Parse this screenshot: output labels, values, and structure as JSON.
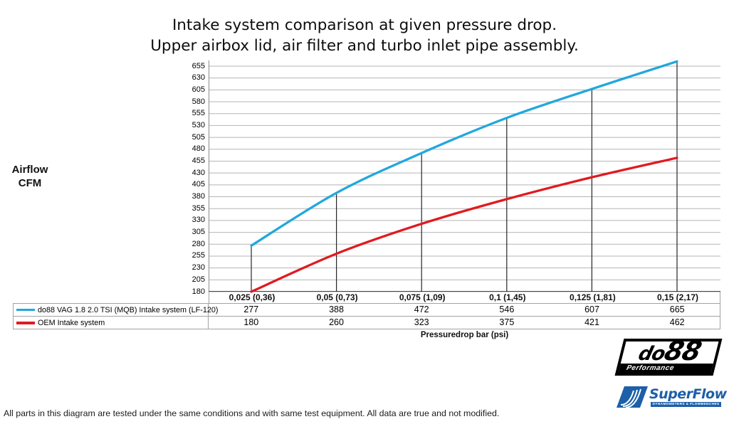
{
  "title": {
    "line1": "Intake system comparison at given pressure drop.",
    "line2": "Upper airbox lid, air filter and turbo inlet pipe assembly."
  },
  "y_axis": {
    "label_line1": "Airflow",
    "label_line2": "CFM"
  },
  "footer": "All parts in this diagram are tested under the same conditions and with same test equipment. All data are true and not modified.",
  "logos": {
    "do88": {
      "name": "do88",
      "tagline": "Performance"
    },
    "superflow": {
      "name": "SuperFlow",
      "tagline": "DYNAMOMETERS & FLOWBENCHES"
    }
  },
  "chart_data": {
    "type": "line",
    "title": "Intake system comparison at given pressure drop. Upper airbox lid, air filter and turbo inlet pipe assembly.",
    "categories": [
      "0,025 (0,36)",
      "0,05 (0,73)",
      "0,075 (1,09)",
      "0,1 (1,45)",
      "0,125 (1,81)",
      "0,15 (2,17)"
    ],
    "series": [
      {
        "name": "do88 VAG 1.8 2.0 TSI (MQB) Intake system (LF-120)",
        "color": "#22a7dd",
        "values": [
          277,
          388,
          472,
          546,
          607,
          665
        ]
      },
      {
        "name": "OEM Intake system",
        "color": "#e01a20",
        "values": [
          180,
          260,
          323,
          375,
          421,
          462
        ]
      }
    ],
    "xlabel": "Pressuredrop bar (psi)",
    "ylabel": "Airflow CFM",
    "ylim": [
      180,
      655
    ],
    "yticks": [
      180,
      205,
      230,
      255,
      280,
      305,
      330,
      355,
      380,
      405,
      430,
      455,
      480,
      505,
      530,
      555,
      580,
      605,
      630,
      655
    ],
    "grid": true,
    "legend_position": "table-left",
    "gridline_color": "#b5b5b5",
    "drop_line_color": "#262626"
  }
}
